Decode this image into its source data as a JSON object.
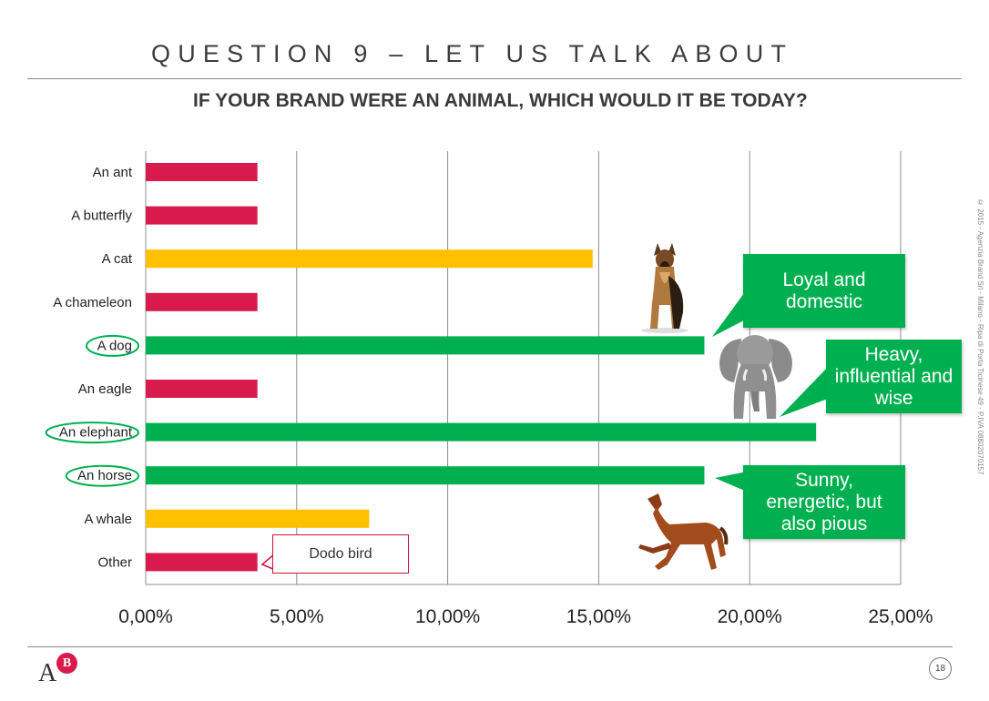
{
  "page": {
    "title": "QUESTION 9 – LET US TALK ABOUT",
    "page_number": "18",
    "side_credit": "© 2015 - Agenzia Brand Srl - Milano - Ripa di Porta Ticinese 49 - P.IVA 08802070157",
    "logo": {
      "letter_a": "A",
      "letter_b": "B"
    }
  },
  "chart_data": {
    "type": "bar",
    "orientation": "horizontal",
    "title": "IF YOUR BRAND WERE AN ANIMAL, WHICH WOULD IT BE TODAY?",
    "categories": [
      "An ant",
      "A butterfly",
      "A cat",
      "A chameleon",
      "A dog",
      "An eagle",
      "An elephant",
      "An horse",
      "A whale",
      "Other"
    ],
    "values": [
      3.7,
      3.7,
      14.8,
      3.7,
      18.5,
      3.7,
      22.2,
      18.5,
      7.4,
      3.7
    ],
    "bar_colors": [
      "#d81b4c",
      "#d81b4c",
      "#ffc000",
      "#d81b4c",
      "#00b050",
      "#d81b4c",
      "#00b050",
      "#00b050",
      "#ffc000",
      "#d81b4c"
    ],
    "highlighted": [
      "A dog",
      "An elephant",
      "An horse"
    ],
    "xlim": [
      0,
      25
    ],
    "xticks": [
      0,
      5,
      10,
      15,
      20,
      25
    ],
    "xtick_labels": [
      "0,00%",
      "5,00%",
      "10,00%",
      "15,00%",
      "20,00%",
      "25,00%"
    ],
    "grid": "vertical",
    "xlabel": "",
    "ylabel": ""
  },
  "callouts": {
    "dog": "Loyal and\ndomestic",
    "elephant": "Heavy,\ninfluential and\nwise",
    "horse": "Sunny,\nenergetic, but\nalso pious",
    "other": "Dodo bird"
  },
  "colors": {
    "red": "#d81b4c",
    "yellow": "#ffc000",
    "green": "#00b050",
    "grid": "#8c8c8c"
  },
  "icons": [
    "dog-image",
    "elephant-image",
    "horse-image"
  ]
}
